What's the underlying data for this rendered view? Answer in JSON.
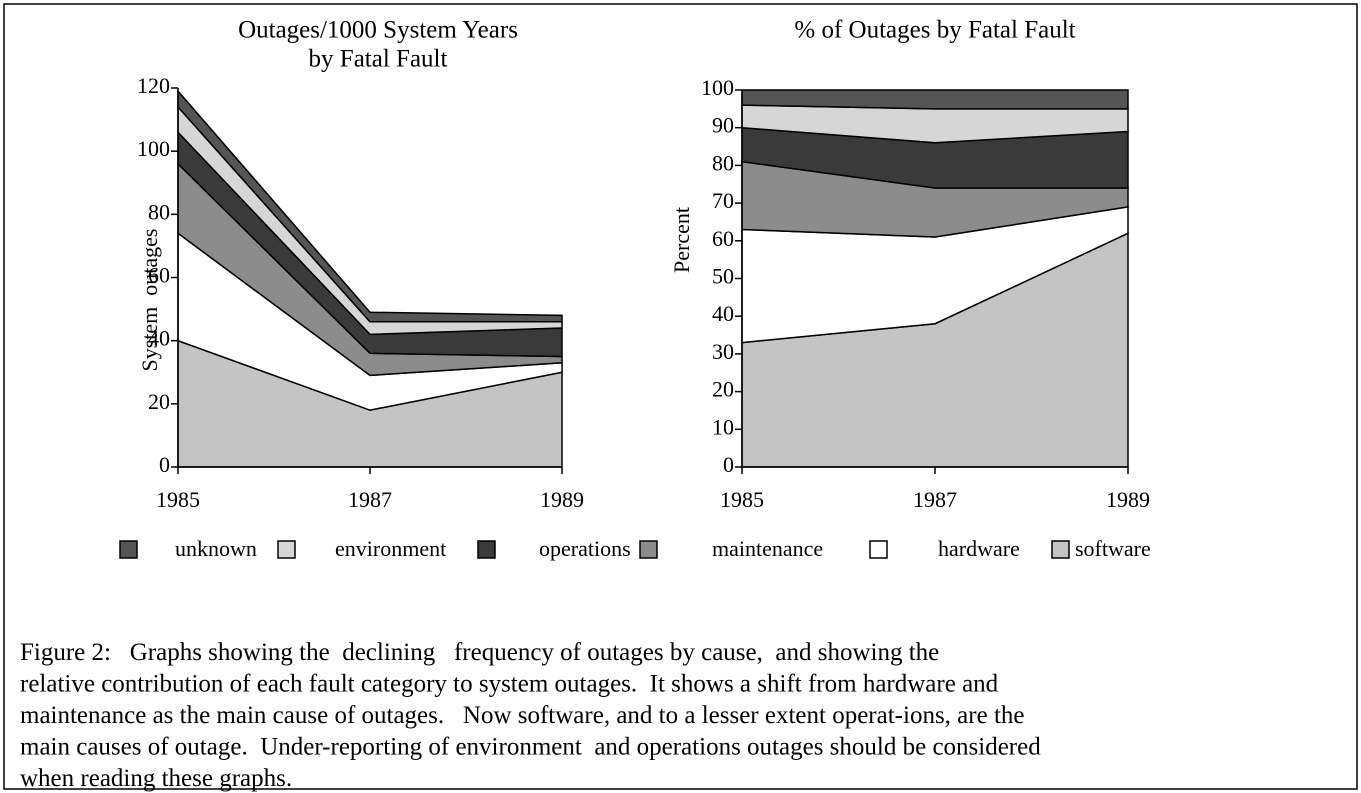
{
  "chart_data": [
    {
      "type": "stacked_area",
      "title": [
        "Outages/1000 System Years",
        "by Fatal Fault"
      ],
      "ylabel": "System  outages",
      "categories": [
        "1985",
        "1987",
        "1989"
      ],
      "ylim": [
        0,
        120
      ],
      "yticks": [
        0,
        20,
        40,
        60,
        80,
        100,
        120
      ],
      "series": [
        {
          "name": "unknown",
          "color": "#555555",
          "values": [
            5,
            3,
            2
          ]
        },
        {
          "name": "environment",
          "color": "#d6d6d6",
          "values": [
            8,
            4,
            2
          ]
        },
        {
          "name": "operations",
          "color": "#3a3a3a",
          "values": [
            10,
            6,
            9
          ]
        },
        {
          "name": "maintenance",
          "color": "#8c8c8c",
          "values": [
            22,
            7,
            2
          ]
        },
        {
          "name": "hardware",
          "color": "#ffffff",
          "values": [
            34,
            11,
            3
          ]
        },
        {
          "name": "software",
          "color": "#c4c4c4",
          "values": [
            40,
            18,
            30
          ]
        }
      ]
    },
    {
      "type": "stacked_area",
      "title": [
        "% of Outages by Fatal Fault"
      ],
      "ylabel": "Percent",
      "categories": [
        "1985",
        "1987",
        "1989"
      ],
      "ylim": [
        0,
        100
      ],
      "yticks": [
        0,
        10,
        20,
        30,
        40,
        50,
        60,
        70,
        80,
        90,
        100
      ],
      "series": [
        {
          "name": "unknown",
          "color": "#555555",
          "values": [
            4,
            5,
            5
          ]
        },
        {
          "name": "environment",
          "color": "#d6d6d6",
          "values": [
            6,
            9,
            6
          ]
        },
        {
          "name": "operations",
          "color": "#3a3a3a",
          "values": [
            9,
            12,
            15
          ]
        },
        {
          "name": "maintenance",
          "color": "#8c8c8c",
          "values": [
            18,
            13,
            5
          ]
        },
        {
          "name": "hardware",
          "color": "#ffffff",
          "values": [
            30,
            23,
            7
          ]
        },
        {
          "name": "software",
          "color": "#c4c4c4",
          "values": [
            33,
            38,
            62
          ]
        }
      ]
    }
  ],
  "caption": [
    "Figure 2:   Graphs showing the  declining   frequency of outages by cause,  and showing the",
    "relative contribution of each fault category to system outages.  It shows a shift from hardware and",
    "maintenance as the main cause of outages.   Now software, and to a lesser extent operat-ions, are the",
    "main causes of outage.  Under-reporting of environment  and operations outages should be considered",
    "when reading these graphs."
  ]
}
